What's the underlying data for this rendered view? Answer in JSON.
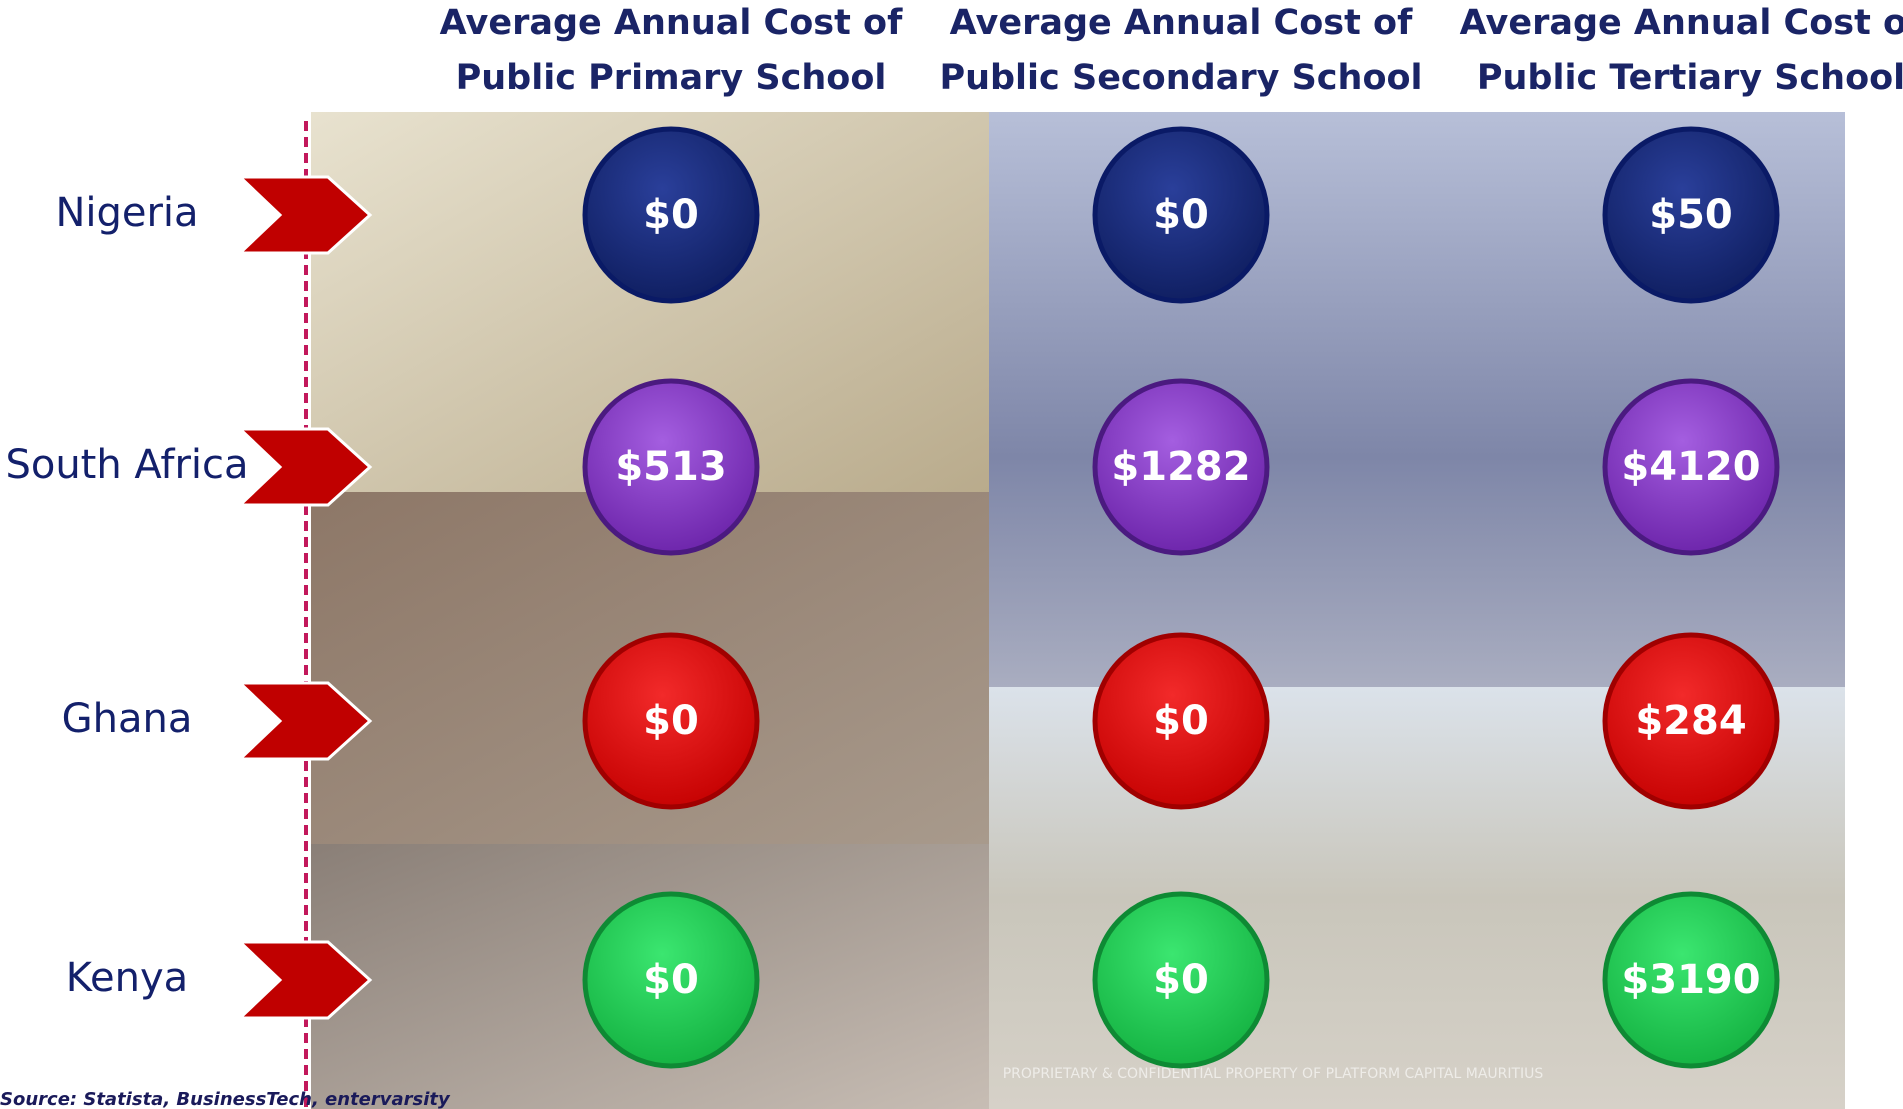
{
  "columns": [
    {
      "line1": "Average Annual Cost of",
      "line2": "Public Primary School"
    },
    {
      "line1": "Average Annual Cost of",
      "line2": "Public Secondary School"
    },
    {
      "line1": "Average Annual Cost of",
      "line2": "Public Tertiary School"
    }
  ],
  "rows": [
    {
      "country": "Nigeria",
      "costs": [
        "$0",
        "$0",
        "$50"
      ]
    },
    {
      "country": "South Africa",
      "costs": [
        "$513",
        "$1282",
        "$4120"
      ]
    },
    {
      "country": "Ghana",
      "costs": [
        "$0",
        "$0",
        "$284"
      ]
    },
    {
      "country": "Kenya",
      "costs": [
        "$0",
        "$0",
        "$3190"
      ]
    }
  ],
  "footer": {
    "source": "Source: Statista, BusinessTech, entervarsity",
    "watermark": "PROPRIETARY & CONFIDENTIAL PROPERTY OF PLATFORM CAPITAL MAURITIUS"
  }
}
